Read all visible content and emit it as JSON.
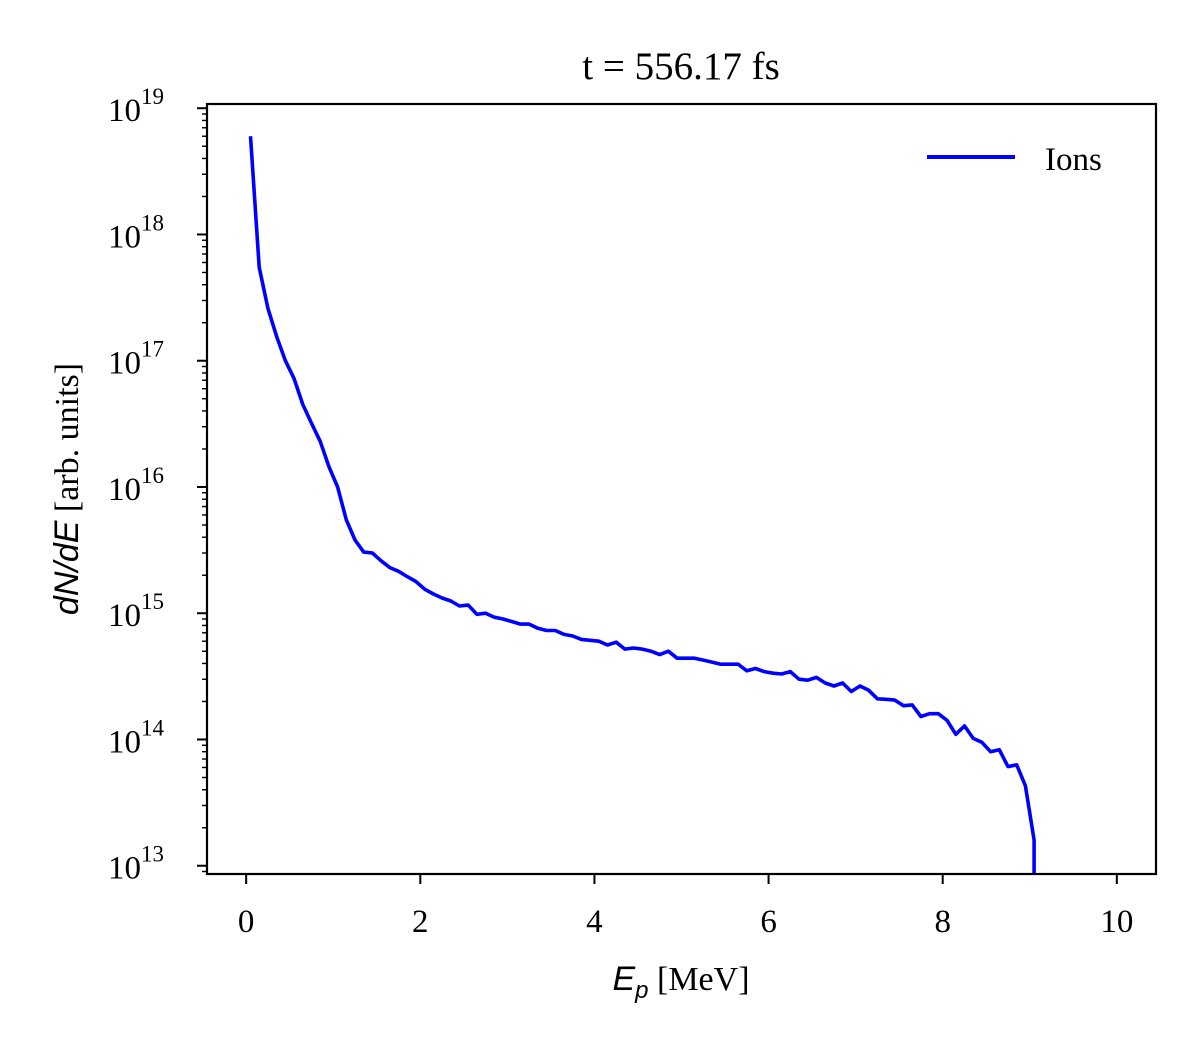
{
  "chart_data": {
    "type": "line",
    "title": "t = 556.17 fs",
    "xlabel": {
      "symbol": "E",
      "subscript": "p",
      "unit": " [MeV]"
    },
    "ylabel": {
      "symbol": "dN/dE",
      "unit": " [arb. units]"
    },
    "xlim": [
      -0.45,
      10.45
    ],
    "ylim": [
      8600000000000.0,
      1.08e+19
    ],
    "yscale": "log",
    "grid": false,
    "legend_position": "top-right",
    "x_ticks": [
      {
        "value": 0,
        "label": "0"
      },
      {
        "value": 2,
        "label": "2"
      },
      {
        "value": 4,
        "label": "4"
      },
      {
        "value": 6,
        "label": "6"
      },
      {
        "value": 8,
        "label": "8"
      },
      {
        "value": 10,
        "label": "10"
      }
    ],
    "y_ticks": [
      {
        "exponent": 13,
        "base": "10",
        "sup": "13"
      },
      {
        "exponent": 14,
        "base": "10",
        "sup": "14"
      },
      {
        "exponent": 15,
        "base": "10",
        "sup": "15"
      },
      {
        "exponent": 16,
        "base": "10",
        "sup": "16"
      },
      {
        "exponent": 17,
        "base": "10",
        "sup": "17"
      },
      {
        "exponent": 18,
        "base": "10",
        "sup": "18"
      },
      {
        "exponent": 19,
        "base": "10",
        "sup": "19"
      }
    ],
    "series": [
      {
        "name": "Ions",
        "color": "#0000ff",
        "x": [
          0.05,
          0.15,
          0.25,
          0.35,
          0.45,
          0.55,
          0.65,
          0.75,
          0.85,
          0.95,
          1.05,
          1.15,
          1.25,
          1.35,
          1.45,
          1.55,
          1.65,
          1.75,
          1.85,
          1.95,
          2.05,
          2.15,
          2.25,
          2.35,
          2.45,
          2.55,
          2.65,
          2.75,
          2.85,
          2.95,
          3.05,
          3.15,
          3.25,
          3.35,
          3.45,
          3.55,
          3.65,
          3.75,
          3.85,
          3.95,
          4.05,
          4.15,
          4.25,
          4.35,
          4.45,
          4.55,
          4.65,
          4.75,
          4.85,
          4.95,
          5.05,
          5.15,
          5.25,
          5.35,
          5.45,
          5.55,
          5.65,
          5.75,
          5.85,
          5.95,
          6.05,
          6.15,
          6.25,
          6.35,
          6.45,
          6.55,
          6.65,
          6.75,
          6.85,
          6.95,
          7.05,
          7.15,
          7.25,
          7.35,
          7.45,
          7.55,
          7.65,
          7.75,
          7.85,
          7.95,
          8.05,
          8.15,
          8.25,
          8.35,
          8.45,
          8.55,
          8.65,
          8.75,
          8.85,
          8.95,
          9.05,
          9.05
        ],
        "y": [
          6e+18,
          5.5e+17,
          2.6e+17,
          1.55e+17,
          1e+17,
          7.2e+16,
          4.5e+16,
          3.2e+16,
          2.3e+16,
          1.45e+16,
          1e+16,
          5500000000000000.0,
          3800000000000000.0,
          3050000000000000.0,
          3000000000000000.0,
          2600000000000000.0,
          2300000000000000.0,
          2150000000000000.0,
          1950000000000000.0,
          1780000000000000.0,
          1550000000000000.0,
          1420000000000000.0,
          1320000000000000.0,
          1250000000000000.0,
          1140000000000000.0,
          1160000000000000.0,
          980000000000000.0,
          1000000000000000.0,
          930000000000000.0,
          900000000000000.0,
          860000000000000.0,
          820000000000000.0,
          820000000000000.0,
          760000000000000.0,
          730000000000000.0,
          730000000000000.0,
          680000000000000.0,
          660000000000000.0,
          620000000000000.0,
          610000000000000.0,
          600000000000000.0,
          560000000000000.0,
          590000000000000.0,
          520000000000000.0,
          530000000000000.0,
          520000000000000.0,
          500000000000000.0,
          470000000000000.0,
          500000000000000.0,
          440000000000000.0,
          440000000000000.0,
          440000000000000.0,
          425000000000000.0,
          410000000000000.0,
          395000000000000.0,
          395000000000000.0,
          395000000000000.0,
          350000000000000.0,
          365000000000000.0,
          345000000000000.0,
          335000000000000.0,
          330000000000000.0,
          345000000000000.0,
          300000000000000.0,
          295000000000000.0,
          310000000000000.0,
          280000000000000.0,
          265000000000000.0,
          280000000000000.0,
          240000000000000.0,
          265000000000000.0,
          245000000000000.0,
          210000000000000.0,
          208000000000000.0,
          205000000000000.0,
          185000000000000.0,
          188000000000000.0,
          152000000000000.0,
          160000000000000.0,
          160000000000000.0,
          142000000000000.0,
          110000000000000.0,
          128000000000000.0,
          102000000000000.0,
          95000000000000.0,
          80000000000000.0,
          83000000000000.0,
          61000000000000.0,
          63000000000000.0,
          43000000000000.0,
          16000000000000.0,
          8600000000000.0
        ]
      }
    ]
  }
}
